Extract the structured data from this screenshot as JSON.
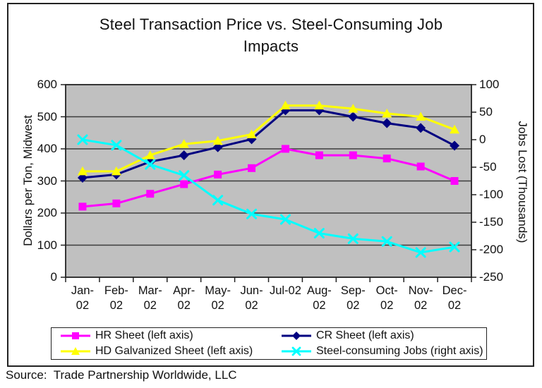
{
  "source": {
    "text": "Source:  Trade Partnership Worldwide, LLC"
  },
  "chart_data": {
    "type": "line",
    "title": "Steel Transaction Price vs. Steel-Consuming Job Impacts",
    "title_display": "Steel Transaction Price vs. Steel-Consuming Job\nImpacts",
    "x_labels": [
      "Jan-02",
      "Feb-02",
      "Mar-02",
      "Apr-02",
      "May-02",
      "Jun-02",
      "Jul-02",
      "Aug-02",
      "Sep-02",
      "Oct-02",
      "Nov-02",
      "Dec-02"
    ],
    "x_labels_lines": [
      [
        "Jan-",
        "02"
      ],
      [
        "Feb-",
        "02"
      ],
      [
        "Mar-",
        "02"
      ],
      [
        "Apr-",
        "02"
      ],
      [
        "May-",
        "02"
      ],
      [
        "Jun-",
        "02"
      ],
      [
        "Jul-02"
      ],
      [
        "Aug-",
        "02"
      ],
      [
        "Sep-",
        "02"
      ],
      [
        "Oct-",
        "02"
      ],
      [
        "Nov-",
        "02"
      ],
      [
        "Dec-",
        "02"
      ]
    ],
    "left_axis": {
      "label": "Dollars per Ton, Midwest",
      "min": 0,
      "max": 600,
      "step": 100,
      "ticks": [
        600,
        500,
        400,
        300,
        200,
        100,
        0
      ]
    },
    "right_axis": {
      "label": "Jobs Lost (Thousands)",
      "min": -250,
      "max": 100,
      "step": 50,
      "ticks": [
        100,
        50,
        0,
        -50,
        -100,
        -150,
        -200,
        -250
      ]
    },
    "series": [
      {
        "name": "HR Sheet (left axis)",
        "axis": "left",
        "color": "#ff00ff",
        "marker": "square",
        "values": [
          220,
          230,
          260,
          290,
          320,
          340,
          400,
          380,
          380,
          370,
          345,
          300
        ]
      },
      {
        "name": "CR Sheet (left axis)",
        "axis": "left",
        "color": "#000080",
        "marker": "diamond",
        "values": [
          310,
          320,
          360,
          380,
          405,
          430,
          520,
          520,
          500,
          480,
          465,
          410
        ]
      },
      {
        "name": "HD Galvanized Sheet (left axis)",
        "axis": "left",
        "color": "#ffff00",
        "marker": "triangle",
        "values": [
          330,
          330,
          380,
          415,
          425,
          445,
          535,
          535,
          525,
          510,
          500,
          460
        ]
      },
      {
        "name": "Steel-consuming Jobs (right axis)",
        "axis": "right",
        "color": "#00ffff",
        "marker": "x",
        "values": [
          0,
          -10,
          -45,
          -65,
          -110,
          -135,
          -145,
          -170,
          -180,
          -185,
          -205,
          -195
        ]
      }
    ],
    "legend_position": "bottom",
    "grid": true,
    "plot_bg": "#c0c0c0",
    "grid_color": "#3c3c3c",
    "frame_color": "#222222"
  }
}
